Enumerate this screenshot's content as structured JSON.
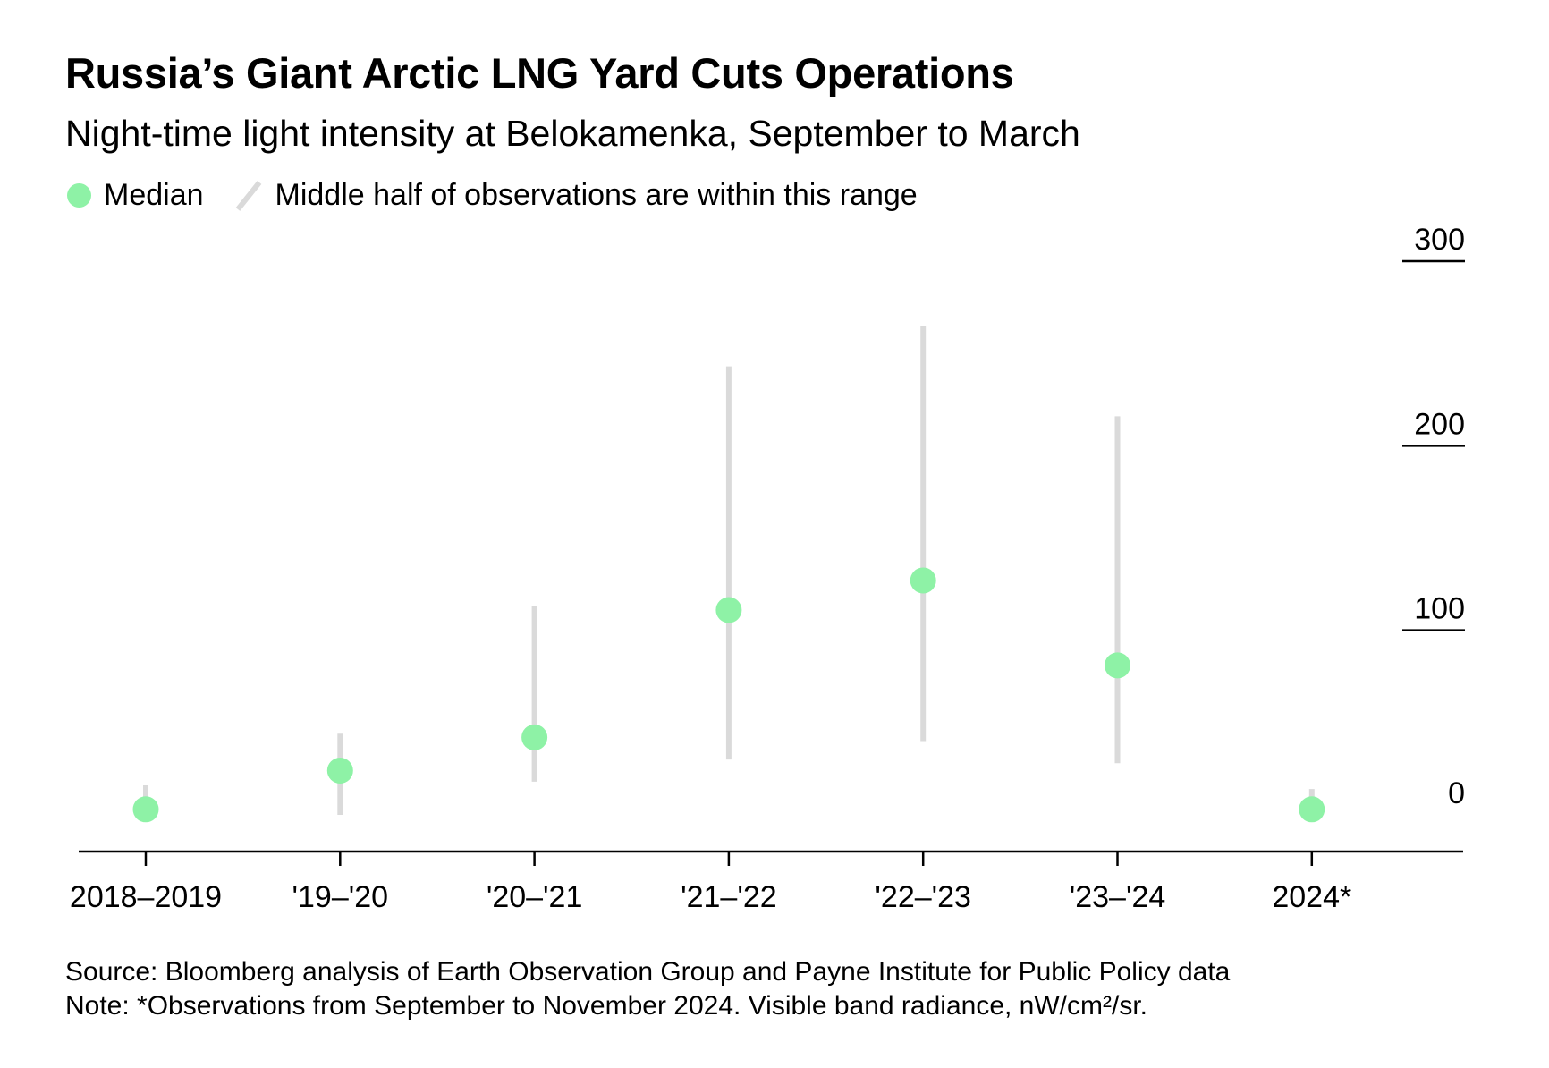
{
  "title": "Russia’s Giant Arctic LNG Yard Cuts Operations",
  "subtitle": "Night-time light intensity at Belokamenka, September to March",
  "legend": {
    "median_label": "Median",
    "range_label": "Middle half of observations are within this range"
  },
  "colors": {
    "median": "#8ef2a6",
    "range": "#dadada",
    "axis": "#000000"
  },
  "chart_data": {
    "type": "scatter",
    "title": "Russia’s Giant Arctic LNG Yard Cuts Operations",
    "subtitle": "Night-time light intensity at Belokamenka, September to March",
    "categories": [
      "2018–2019",
      "'19–'20",
      "'20–'21",
      "'21–'22",
      "'22–'23",
      "'23–'24",
      "2024*"
    ],
    "series": [
      {
        "name": "Median",
        "values": [
          3,
          24,
          42,
          111,
          127,
          81,
          3
        ]
      },
      {
        "name": "Middle half of observations are within this range",
        "low": [
          0,
          0,
          18,
          30,
          40,
          28,
          0
        ],
        "high": [
          16,
          44,
          113,
          243,
          265,
          216,
          14
        ]
      }
    ],
    "ylim": [
      -15,
      300
    ],
    "yticks": [
      0,
      100,
      200,
      300
    ],
    "ytick_labels": [
      "0",
      "100",
      "200",
      "300"
    ],
    "y_axis_side": "right",
    "grid": false,
    "legend_position": "top-left"
  },
  "footer": {
    "source": "Source: Bloomberg analysis of Earth Observation Group and Payne Institute for Public Policy data",
    "note": "Note: *Observations from September to November 2024. Visible band radiance, nW/cm²/sr."
  }
}
